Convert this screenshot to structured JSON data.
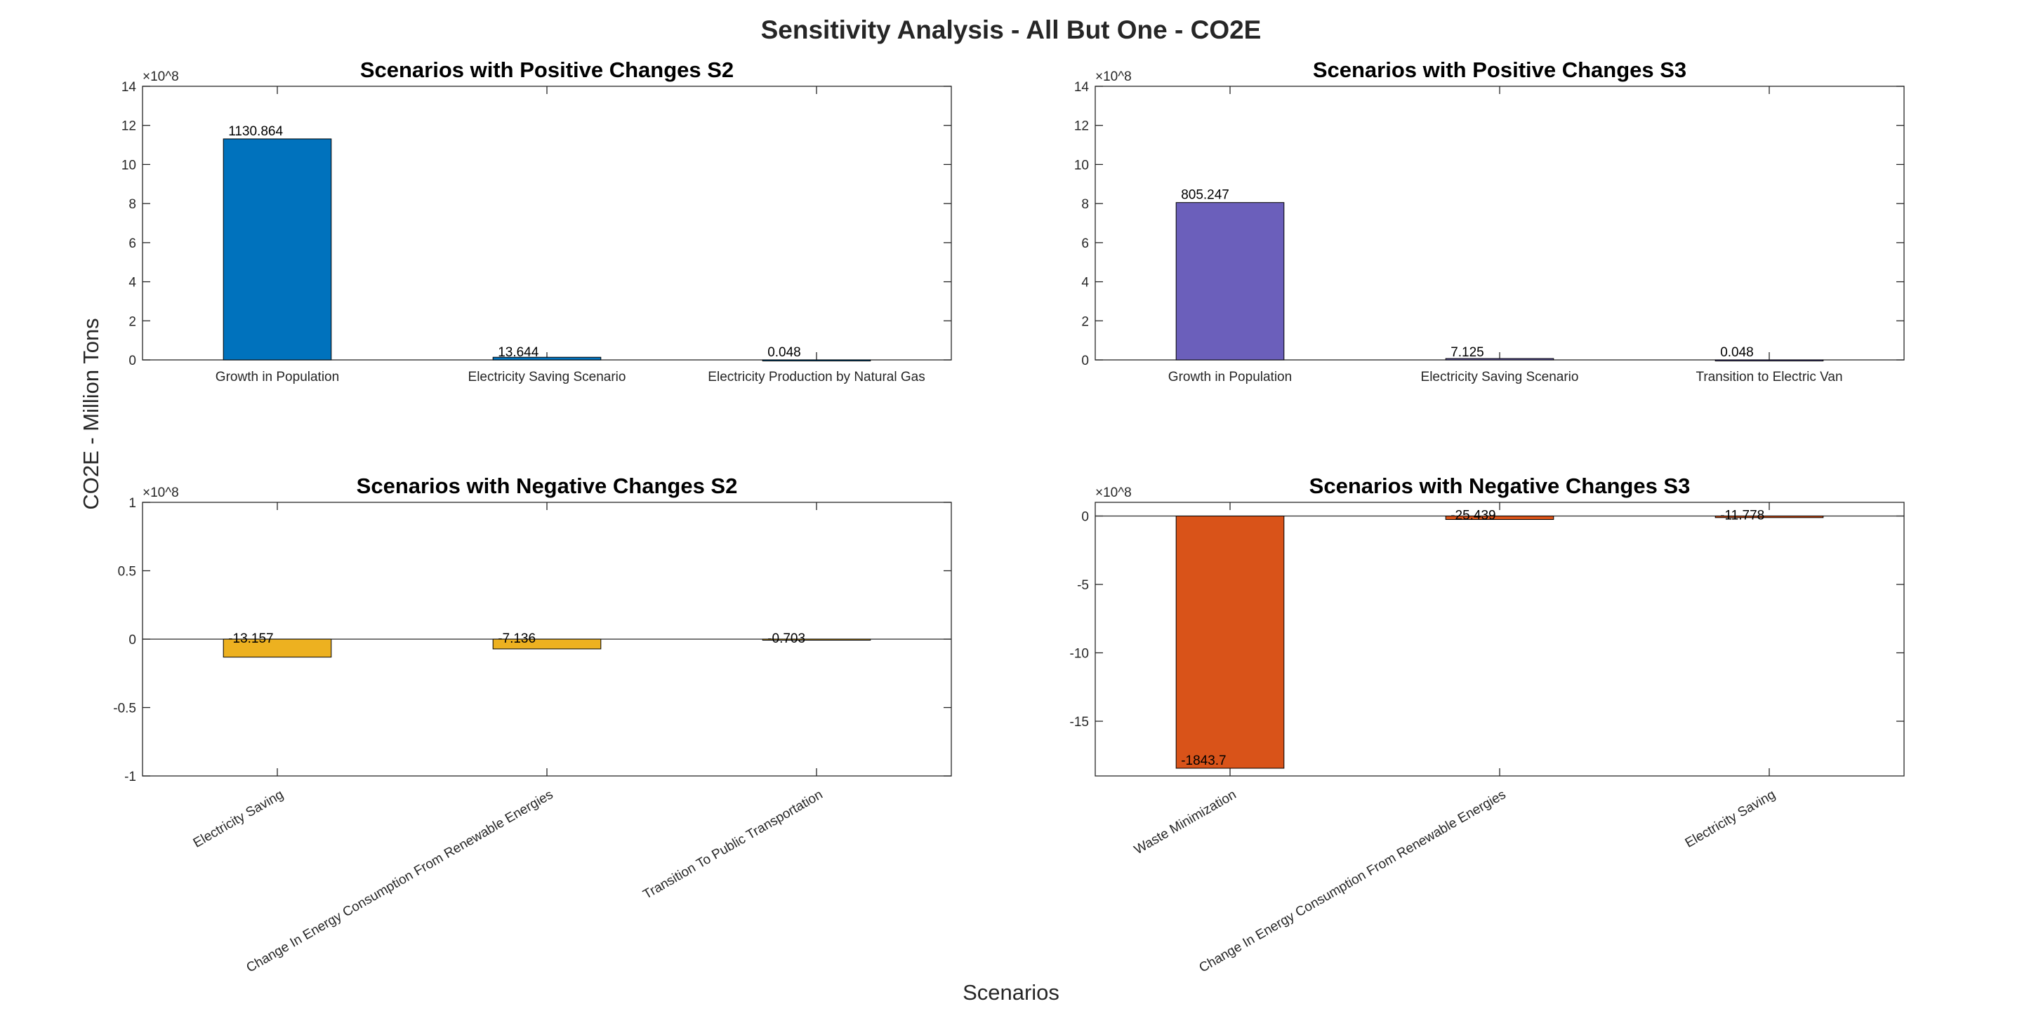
{
  "figure": {
    "title": "Sensitivity Analysis - All But One - CO2E",
    "ylabel": "CO2E - Million Tons",
    "xlabel": "Scenarios",
    "exponent_label": "×10^8"
  },
  "chart_data": [
    {
      "type": "bar",
      "title": "Scenarios with Positive Changes S2",
      "categories": [
        "Growth in Population",
        "Electricity Saving Scenario",
        "Electricity Production by Natural Gas"
      ],
      "values": [
        1130.864,
        13.644,
        0.048
      ],
      "data_labels": [
        "1130.864",
        "13.644",
        "0.048"
      ],
      "ylim": [
        0,
        14
      ],
      "yticks": [
        0,
        2,
        4,
        6,
        8,
        10,
        12,
        14
      ],
      "ytick_labels": [
        "0",
        "2",
        "4",
        "6",
        "8",
        "10",
        "12",
        "14"
      ],
      "axis_scale": "×10^8",
      "color": "#0072BD",
      "rotated_labels": false
    },
    {
      "type": "bar",
      "title": "Scenarios with Positive Changes S3",
      "categories": [
        "Growth in Population",
        "Electricity Saving Scenario",
        "Transition to Electric Van"
      ],
      "values": [
        805.247,
        7.125,
        0.048
      ],
      "data_labels": [
        "805.247",
        "7.125",
        "0.048"
      ],
      "ylim": [
        0,
        14
      ],
      "yticks": [
        0,
        2,
        4,
        6,
        8,
        10,
        12,
        14
      ],
      "ytick_labels": [
        "0",
        "2",
        "4",
        "6",
        "8",
        "10",
        "12",
        "14"
      ],
      "axis_scale": "×10^8",
      "color": "#6B5FBB",
      "rotated_labels": false
    },
    {
      "type": "bar",
      "title": "Scenarios with Negative Changes S2",
      "categories": [
        "Electricity Saving",
        "Change In Energy Consumption From Renewable Energies",
        "Transition To Public Transportation"
      ],
      "values": [
        -13.157,
        -7.136,
        -0.703
      ],
      "data_labels": [
        "-13.157",
        "-7.136",
        "-0.703"
      ],
      "ylim": [
        -1,
        1
      ],
      "yticks": [
        -1,
        -0.5,
        0,
        0.5,
        1
      ],
      "ytick_labels": [
        "-1",
        "-0.5",
        "0",
        "0.5",
        "1"
      ],
      "axis_scale": "×10^8",
      "color": "#EDB120",
      "rotated_labels": true
    },
    {
      "type": "bar",
      "title": "Scenarios with Negative Changes S3",
      "categories": [
        "Waste Minimization",
        "Change In Energy Consumption From Renewable Energies",
        "Electricity Saving"
      ],
      "values": [
        -1843.7,
        -25.439,
        -11.778
      ],
      "data_labels": [
        "-1843.7",
        "-25.439",
        "-11.778"
      ],
      "ylim": [
        -19,
        1
      ],
      "yticks": [
        -15,
        -10,
        -5,
        0
      ],
      "ytick_labels": [
        "-15",
        "-10",
        "-5",
        "0"
      ],
      "axis_scale": "×10^8",
      "color": "#D95319",
      "rotated_labels": true
    }
  ]
}
